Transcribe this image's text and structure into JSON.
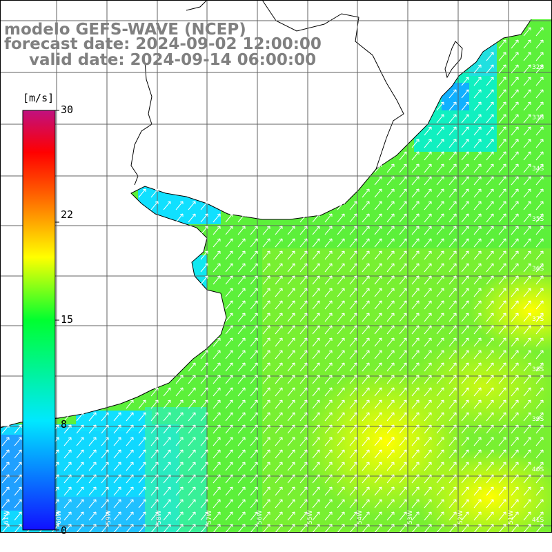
{
  "header": {
    "model": "modelo GEFS-WAVE (NCEP)",
    "forecast_date": "forecast date: 2024-09-02 12:00:00",
    "valid_date": "valid date: 2024-09-14 06:00:00"
  },
  "legend": {
    "unit": "[m/s]",
    "ticks": [
      "30",
      "22",
      "15",
      "8",
      "0"
    ],
    "tick_values": [
      30,
      22,
      15,
      8,
      0
    ],
    "range": [
      0,
      30
    ],
    "colors": [
      "#1010ff",
      "#00d8ff",
      "#00ff40",
      "#ffff00",
      "#ff9000",
      "#ff0000",
      "#c01080"
    ]
  },
  "map": {
    "land_color": "#ffffff",
    "coast_color": "#000000",
    "grid_color": "#606060",
    "lat_labels": [
      "32S",
      "33S",
      "34S",
      "35S",
      "36S",
      "37S",
      "38S",
      "39S",
      "40S",
      "41S"
    ],
    "lon_labels": [
      "61W",
      "60W",
      "59W",
      "58W",
      "57W",
      "56W",
      "55W",
      "54W",
      "53W",
      "52W",
      "51W"
    ],
    "wind_direction": "SW to NE"
  }
}
